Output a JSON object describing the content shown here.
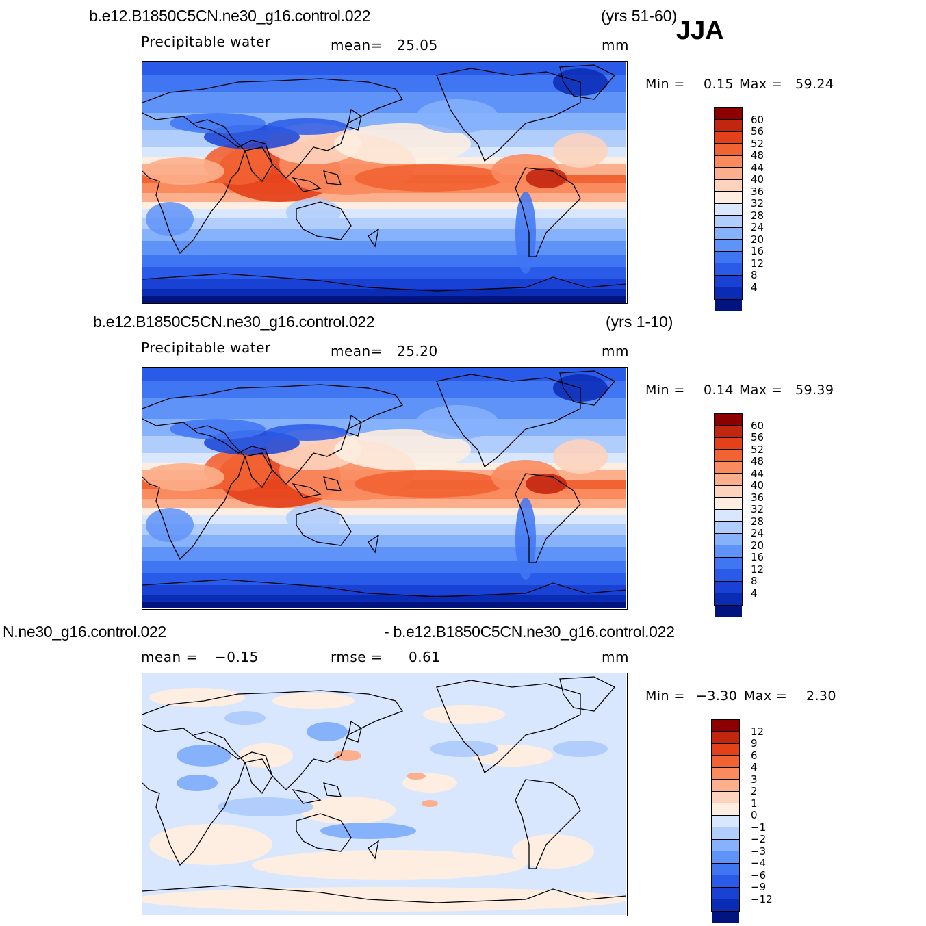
{
  "season": "JJA",
  "colors": {
    "abs_scale": [
      "#00137f",
      "#0a2bb4",
      "#1942d5",
      "#2a5be8",
      "#4076f2",
      "#6093f8",
      "#86b1fb",
      "#b0cdfc",
      "#d8e7fd",
      "#fdeee1",
      "#fdd3bd",
      "#fcaf8c",
      "#fa8b5f",
      "#f26333",
      "#e4401a",
      "#c3260f",
      "#8e0000"
    ],
    "diff_scale": [
      "#00137f",
      "#0a2bb4",
      "#1942d5",
      "#2a5be8",
      "#4076f2",
      "#6093f8",
      "#86b1fb",
      "#b0cdfc",
      "#d8e7fd",
      "#fdeee1",
      "#fdd3bd",
      "#fcaf8c",
      "#fa8b5f",
      "#f26333",
      "#e4401a",
      "#c3260f",
      "#8e0000"
    ],
    "coastline": "#000000"
  },
  "panels": [
    {
      "case": "b.e12.B1850C5CN.ne30_g16.control.022",
      "years": "(yrs 51-60)",
      "variable": "Precipitable  water",
      "stat_label": "mean=",
      "stat_value": "25.05",
      "units": "mm",
      "min_label": "Min  =",
      "min_value": "0.15",
      "max_label": "Max  =",
      "max_value": "59.24",
      "legend_labels": [
        "60",
        "56",
        "52",
        "48",
        "44",
        "40",
        "36",
        "32",
        "28",
        "24",
        "20",
        "16",
        "12",
        "8",
        "4"
      ]
    },
    {
      "case": "b.e12.B1850C5CN.ne30_g16.control.022",
      "years": "(yrs 1-10)",
      "variable": "Precipitable  water",
      "stat_label": "mean=",
      "stat_value": "25.20",
      "units": "mm",
      "min_label": "Min  =",
      "min_value": "0.14",
      "max_label": "Max  =",
      "max_value": "59.39",
      "legend_labels": [
        "60",
        "56",
        "52",
        "48",
        "44",
        "40",
        "36",
        "32",
        "28",
        "24",
        "20",
        "16",
        "12",
        "8",
        "4"
      ]
    },
    {
      "case_left": "N.ne30_g16.control.022",
      "case_right": "- b.e12.B1850C5CN.ne30_g16.control.022",
      "stat_label": "mean  =",
      "stat_value": "−0.15",
      "rmse_label": "rmse  =",
      "rmse_value": "0.61",
      "units": "mm",
      "min_label": "Min  =",
      "min_value": "−3.30",
      "max_label": "Max  =",
      "max_value": "2.30",
      "legend_labels": [
        "12",
        "9",
        "6",
        "4",
        "3",
        "2",
        "1",
        "0",
        "−1",
        "−2",
        "−3",
        "−4",
        "−6",
        "−9",
        "−12"
      ]
    }
  ]
}
